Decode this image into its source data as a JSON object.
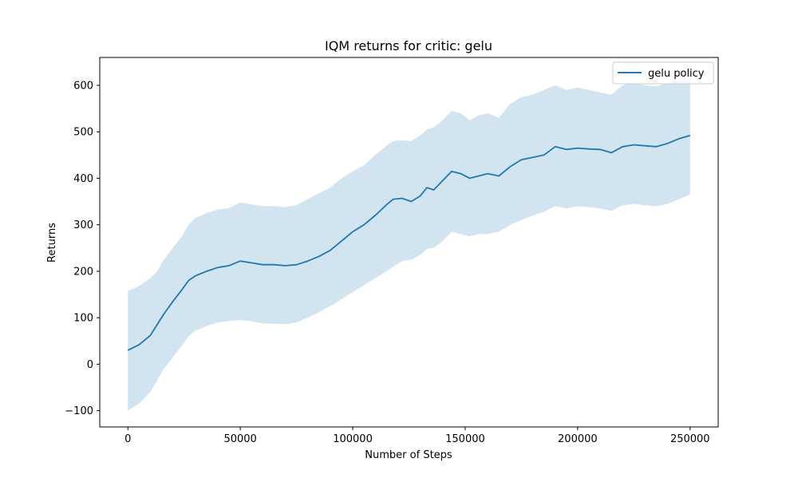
{
  "chart_data": {
    "type": "line",
    "title": "IQM returns for critic: gelu",
    "xlabel": "Number of Steps",
    "ylabel": "Returns",
    "xlim": [
      -12500,
      262500
    ],
    "ylim": [
      -135,
      660
    ],
    "xticks": [
      0,
      50000,
      100000,
      150000,
      200000,
      250000
    ],
    "yticks": [
      -100,
      0,
      100,
      200,
      300,
      400,
      500,
      600
    ],
    "xtick_labels": [
      "0",
      "50000",
      "100000",
      "150000",
      "200000",
      "250000"
    ],
    "ytick_labels": [
      "−100",
      "0",
      "100",
      "200",
      "300",
      "400",
      "500",
      "600"
    ],
    "grid": false,
    "legend_position": "top-right",
    "series": [
      {
        "name": "gelu policy",
        "color": "#1f77b4",
        "band_color": "#1f77b4",
        "x": [
          0,
          5000,
          10000,
          13000,
          16000,
          20000,
          24000,
          27000,
          30000,
          35000,
          40000,
          45000,
          50000,
          55000,
          60000,
          65000,
          70000,
          75000,
          80000,
          85000,
          90000,
          95000,
          100000,
          105000,
          110000,
          115000,
          118000,
          122000,
          126000,
          130000,
          133000,
          136000,
          140000,
          144000,
          148000,
          152000,
          156000,
          160000,
          165000,
          170000,
          175000,
          180000,
          185000,
          190000,
          195000,
          200000,
          205000,
          210000,
          215000,
          220000,
          225000,
          230000,
          235000,
          240000,
          245000,
          250000
        ],
        "y": [
          30,
          42,
          62,
          85,
          108,
          135,
          160,
          180,
          190,
          200,
          208,
          212,
          222,
          218,
          214,
          214,
          212,
          214,
          222,
          232,
          245,
          265,
          285,
          300,
          320,
          343,
          355,
          357,
          350,
          362,
          380,
          375,
          395,
          415,
          410,
          400,
          405,
          410,
          405,
          425,
          440,
          445,
          450,
          468,
          462,
          465,
          463,
          462,
          455,
          468,
          472,
          470,
          468,
          475,
          485,
          492
        ],
        "lower": [
          -100,
          -85,
          -60,
          -35,
          -10,
          15,
          40,
          60,
          72,
          82,
          90,
          93,
          95,
          92,
          88,
          87,
          86,
          90,
          100,
          112,
          125,
          140,
          155,
          170,
          185,
          200,
          210,
          222,
          225,
          235,
          248,
          250,
          265,
          285,
          280,
          275,
          280,
          280,
          285,
          300,
          310,
          320,
          328,
          340,
          335,
          340,
          338,
          335,
          330,
          342,
          345,
          342,
          340,
          345,
          355,
          365
        ],
        "upper": [
          158,
          168,
          185,
          200,
          225,
          250,
          275,
          300,
          315,
          325,
          333,
          336,
          348,
          344,
          340,
          340,
          338,
          342,
          355,
          368,
          380,
          400,
          415,
          428,
          450,
          470,
          480,
          482,
          480,
          492,
          505,
          510,
          525,
          545,
          540,
          525,
          535,
          540,
          530,
          560,
          575,
          580,
          590,
          600,
          590,
          595,
          590,
          585,
          580,
          600,
          605,
          600,
          598,
          605,
          612,
          620
        ]
      }
    ]
  }
}
